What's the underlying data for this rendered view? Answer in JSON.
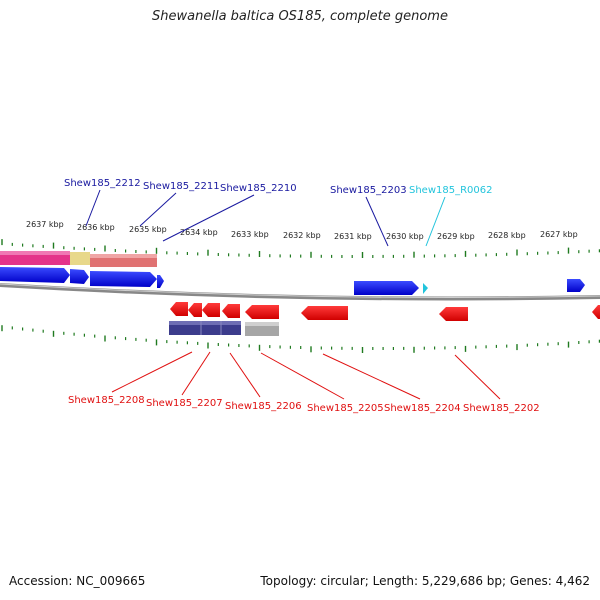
{
  "title": "Shewanella baltica OS185, complete genome",
  "footer": {
    "accession": "Accession: NC_009665",
    "summary": "Topology: circular; Length: 5,229,686 bp; Genes: 4,462"
  },
  "kbp_labels": [
    "2637 kbp",
    "2636 kbp",
    "2635 kbp",
    "2634 kbp",
    "2633 kbp",
    "2632 kbp",
    "2631 kbp",
    "2630 kbp",
    "2629 kbp",
    "2628 kbp",
    "2627 kbp"
  ],
  "top_gene_labels": [
    "Shew185_2212",
    "Shew185_2211",
    "Shew185_2210",
    "Shew185_2203",
    "Shew185_R0062"
  ],
  "bottom_gene_labels": [
    "Shew185_2208",
    "Shew185_2207",
    "Shew185_2206",
    "Shew185_2205",
    "Shew185_2204",
    "Shew185_2202"
  ],
  "colors": {
    "forward_gene": "#0a14e6",
    "reverse_gene": "#e60a0a",
    "rna_gene": "#22c4dc",
    "tick": "#1f7a1f",
    "backbone": "#777777"
  }
}
